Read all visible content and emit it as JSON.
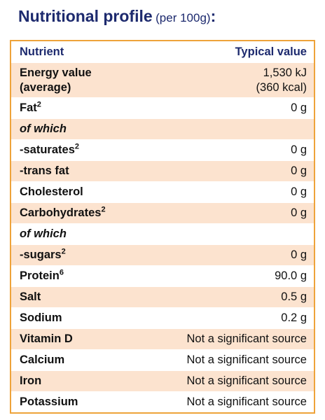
{
  "header": {
    "title": "Nutritional profile",
    "subtitle": "(per 100g)",
    "colon": ":"
  },
  "table": {
    "columns": [
      "Nutrient",
      "Typical value"
    ],
    "rows": [
      {
        "label": "Energy value",
        "label_note": "(average)",
        "value": "1,530 kJ",
        "value_note": "(360 kcal)"
      },
      {
        "label": "Fat",
        "sup": "2",
        "value": "0 g"
      },
      {
        "label": "of which"
      },
      {
        "label": "-saturates",
        "sup": "2",
        "value": "0 g"
      },
      {
        "label": "-trans fat",
        "value": "0 g"
      },
      {
        "label": "Cholesterol",
        "value": "0 g"
      },
      {
        "label": "Carbohydrates",
        "sup": "2",
        "value": "0 g"
      },
      {
        "label": "of which"
      },
      {
        "label": "-sugars",
        "sup": "2",
        "value": "0 g"
      },
      {
        "label": "Protein",
        "sup": "6",
        "value": "90.0 g"
      },
      {
        "label": "Salt",
        "value": "0.5 g"
      },
      {
        "label": "Sodium",
        "value": "0.2 g"
      },
      {
        "label": "Vitamin D",
        "value": "Not a significant source"
      },
      {
        "label": "Calcium",
        "value": "Not a significant source"
      },
      {
        "label": "Iron",
        "value": "Not a significant source"
      },
      {
        "label": "Potassium",
        "value": "Not a significant source"
      }
    ]
  }
}
